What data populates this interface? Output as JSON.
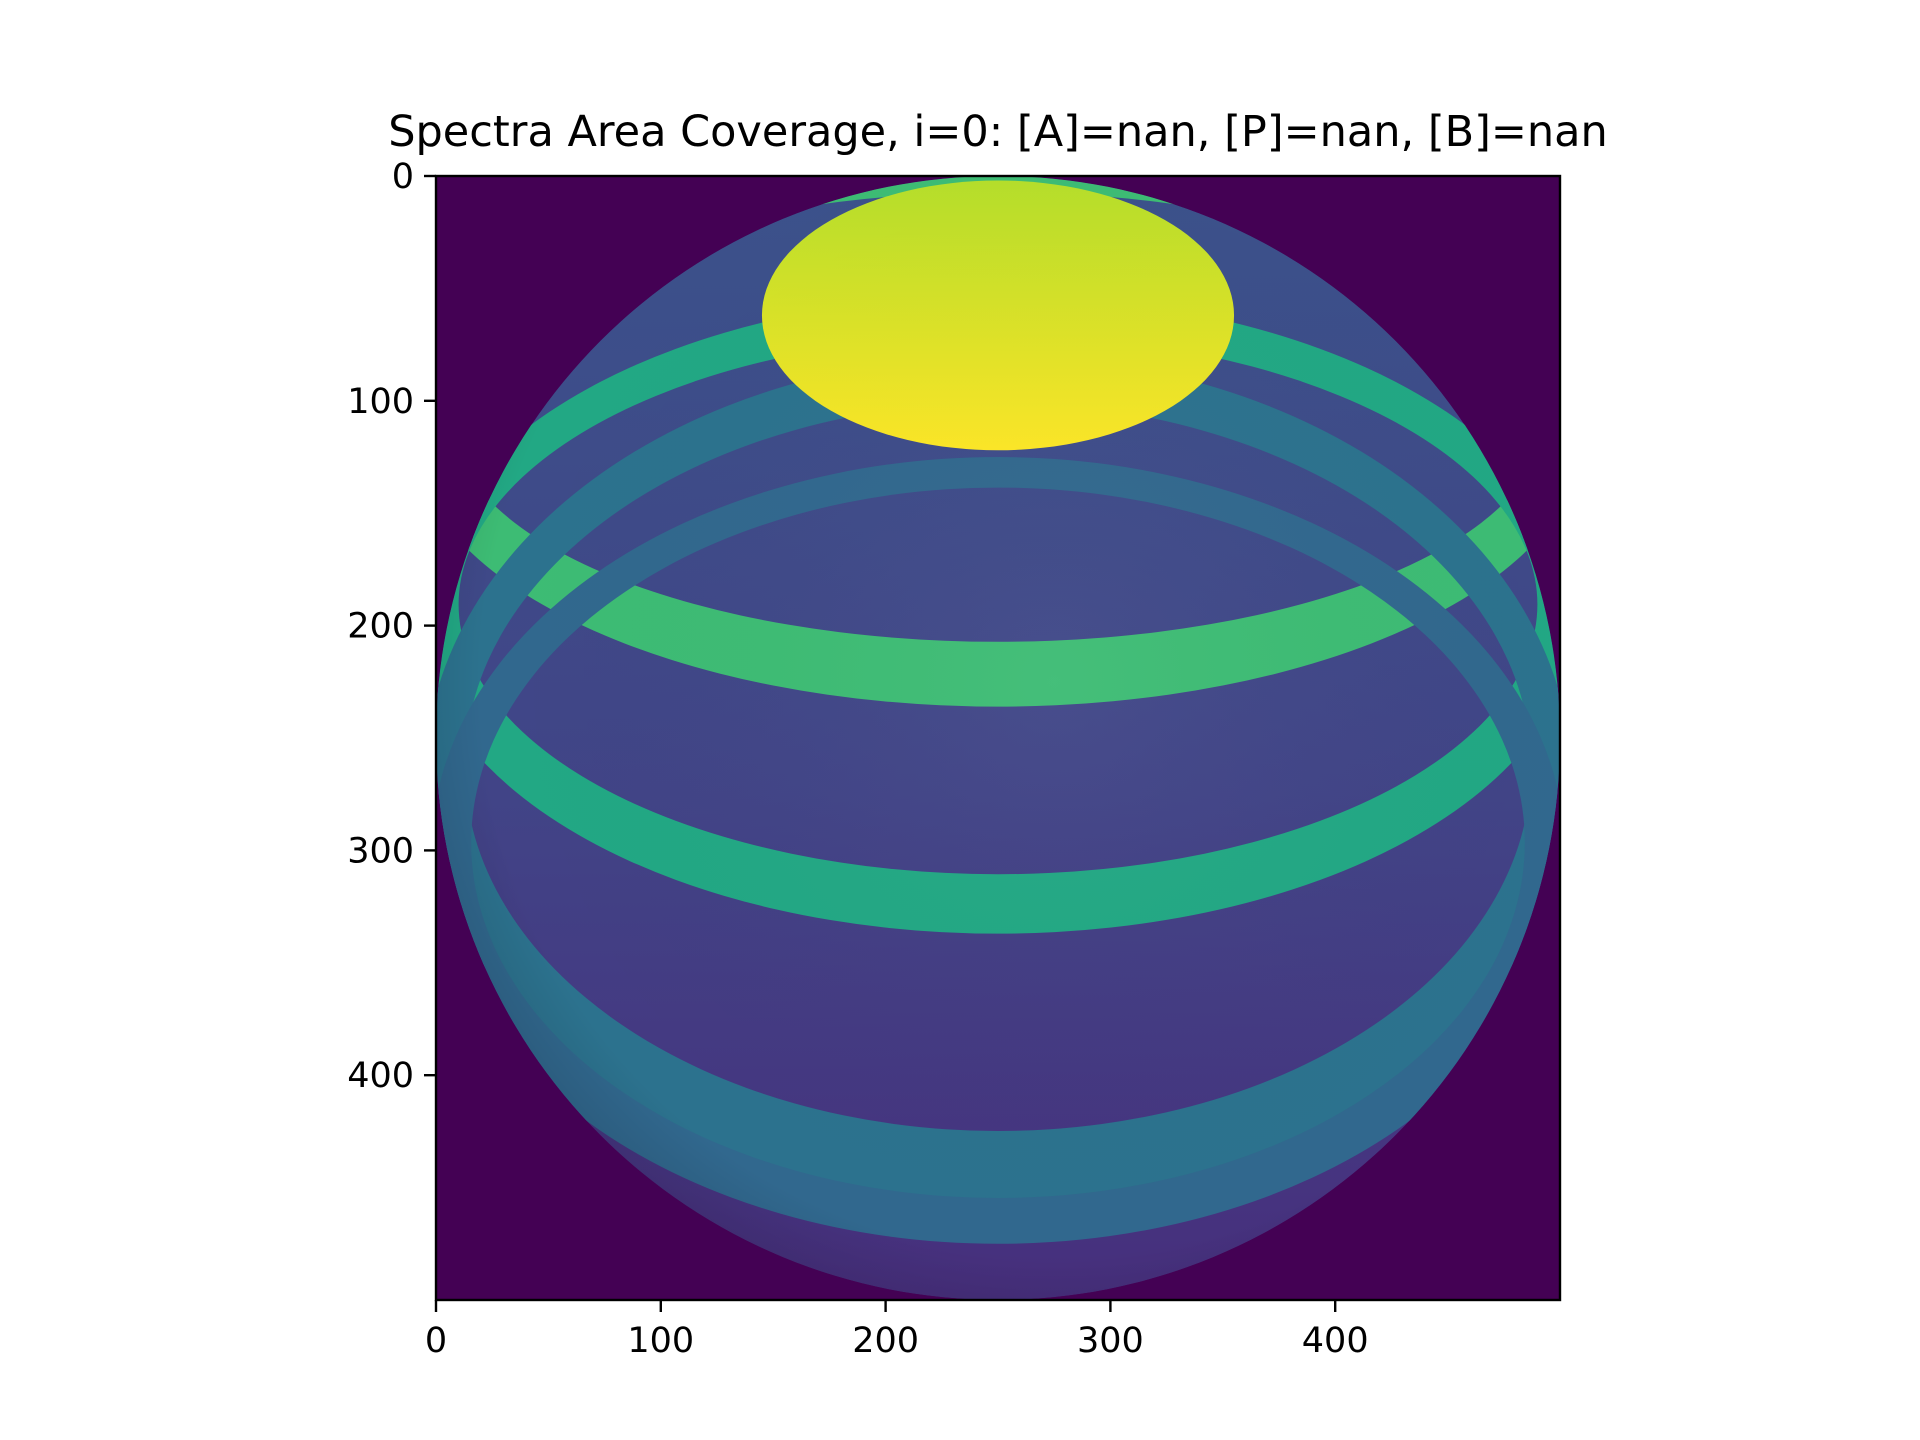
{
  "chart_data": {
    "type": "heatmap",
    "title": "Spectra Area Coverage, i=0: [A]=nan, [P]=nan, [B]=nan",
    "xlabel": "",
    "ylabel": "",
    "image_shape": [
      500,
      500
    ],
    "xlim": [
      0,
      500
    ],
    "ylim": [
      500,
      0
    ],
    "x_ticks": [
      0,
      100,
      200,
      300,
      400
    ],
    "y_ticks": [
      0,
      100,
      200,
      300,
      400
    ],
    "x_tick_labels": [
      "0",
      "100",
      "200",
      "300",
      "400"
    ],
    "y_tick_labels": [
      "0",
      "100",
      "200",
      "300",
      "400"
    ],
    "colormap": "viridis",
    "background_color": "#440154",
    "grid": false,
    "sphere": {
      "center": [
        250,
        250
      ],
      "radius": 250
    },
    "features": [
      {
        "name": "polar-cap",
        "kind": "cap",
        "cx": 250,
        "cy": 62,
        "rx": 105,
        "ry": 60,
        "color_top": "#b5de2b",
        "color_bottom": "#fde725"
      },
      {
        "kind": "band",
        "cy": 112,
        "rx": 262,
        "ry_outer": 124,
        "ry_inner": 100,
        "color": "#3dbc74"
      },
      {
        "kind": "band",
        "cy": 195,
        "rx": 258,
        "ry_outer": 142,
        "ry_inner": 120,
        "color": "#22a884"
      },
      {
        "kind": "band",
        "cy": 268,
        "rx": 255,
        "ry_outer": 188,
        "ry_inner": 162,
        "color": "#2c728e"
      },
      {
        "kind": "band",
        "cy": 300,
        "rx": 252,
        "ry_outer": 175,
        "ry_inner": 158,
        "color": "#31688e"
      }
    ],
    "sphere_colors": {
      "north": "#3b528b",
      "middle": "#414487",
      "south": "#472f7d"
    }
  }
}
